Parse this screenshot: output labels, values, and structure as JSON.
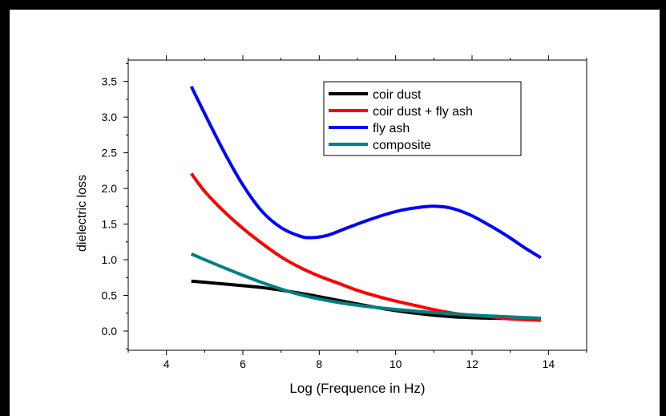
{
  "chart_data": {
    "type": "line",
    "xlabel": "Log (Frequence in Hz)",
    "ylabel": "dielectric loss",
    "xlim": [
      3,
      15
    ],
    "ylim": [
      -0.27,
      3.8
    ],
    "xticks": [
      4,
      6,
      8,
      10,
      12,
      14
    ],
    "xtick_labels": [
      "4",
      "6",
      "8",
      "10",
      "12",
      "14"
    ],
    "yticks": [
      0.0,
      0.5,
      1.0,
      1.5,
      2.0,
      2.5,
      3.0,
      3.5
    ],
    "ytick_labels": [
      "0.0",
      "0.5",
      "1.0",
      "1.5",
      "2.0",
      "2.5",
      "3.0",
      "3.5"
    ],
    "legend": {
      "placement": "top-right"
    },
    "series": [
      {
        "name": "coir dust",
        "color": "#000000",
        "x": [
          4.65,
          5.5,
          6.5,
          7.5,
          8.5,
          9.5,
          10.5,
          11.5,
          12.5,
          13.8
        ],
        "y": [
          0.7,
          0.66,
          0.61,
          0.53,
          0.43,
          0.33,
          0.25,
          0.2,
          0.18,
          0.17
        ]
      },
      {
        "name": "coir dust + fly ash",
        "color": "#ff0000",
        "x": [
          4.65,
          5.0,
          5.5,
          6.0,
          6.5,
          7.0,
          7.5,
          8.0,
          8.5,
          9.0,
          9.5,
          10.0,
          10.5,
          11.0,
          11.5,
          12.0,
          12.5,
          13.0,
          13.8
        ],
        "y": [
          2.21,
          1.96,
          1.68,
          1.44,
          1.23,
          1.04,
          0.89,
          0.77,
          0.67,
          0.57,
          0.49,
          0.42,
          0.36,
          0.3,
          0.25,
          0.22,
          0.2,
          0.17,
          0.15
        ]
      },
      {
        "name": "fly ash",
        "color": "#0000ff",
        "x": [
          4.65,
          5.0,
          5.5,
          6.0,
          6.5,
          7.0,
          7.5,
          7.8,
          8.2,
          8.7,
          9.2,
          9.7,
          10.2,
          10.7,
          11.0,
          11.4,
          11.9,
          12.4,
          12.9,
          13.4,
          13.8
        ],
        "y": [
          3.43,
          3.05,
          2.52,
          2.05,
          1.68,
          1.45,
          1.33,
          1.31,
          1.34,
          1.44,
          1.54,
          1.63,
          1.7,
          1.74,
          1.75,
          1.73,
          1.64,
          1.5,
          1.34,
          1.16,
          1.03
        ]
      },
      {
        "name": "composite",
        "color": "#008080",
        "x": [
          4.65,
          5.5,
          6.5,
          7.5,
          8.5,
          9.5,
          10.5,
          11.5,
          12.5,
          13.8
        ],
        "y": [
          1.08,
          0.89,
          0.68,
          0.51,
          0.4,
          0.33,
          0.28,
          0.24,
          0.21,
          0.18
        ]
      }
    ]
  }
}
